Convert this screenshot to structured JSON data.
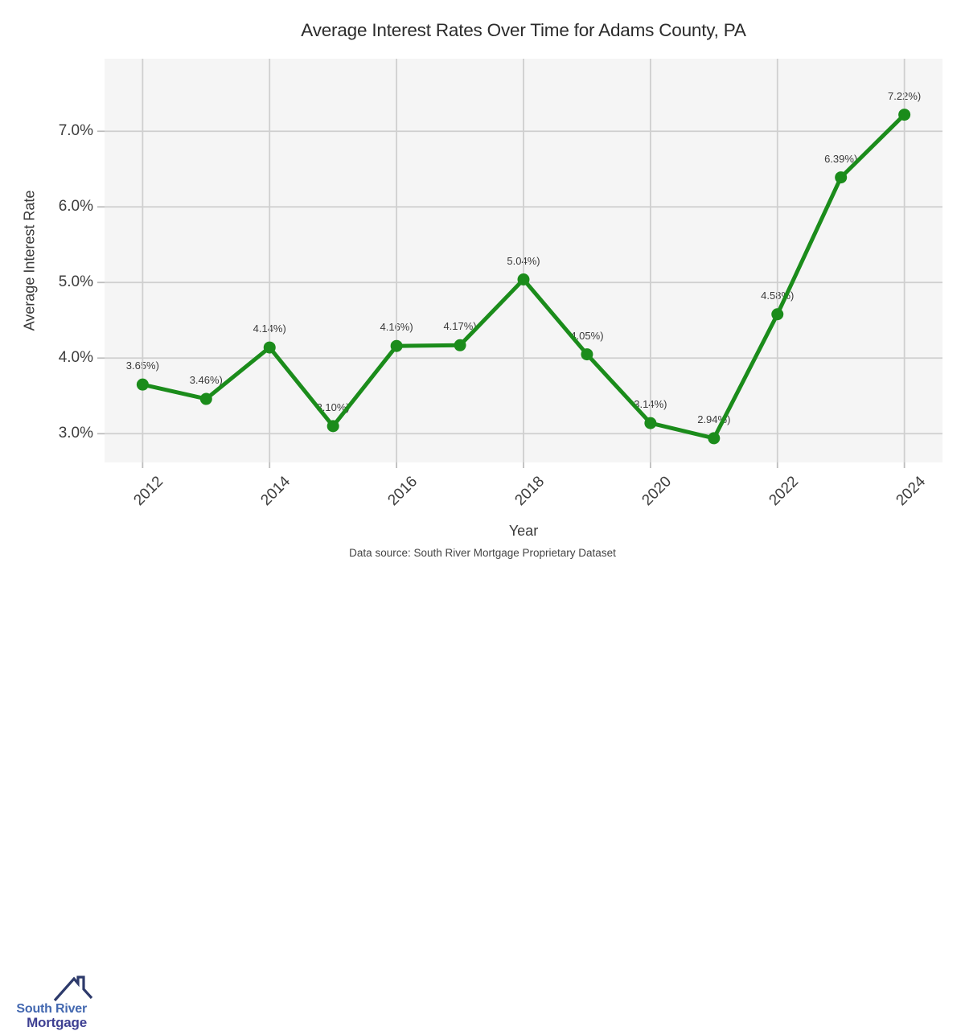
{
  "title": "Average Interest Rates Over Time for Adams County, PA",
  "footer": {
    "source": "Data source: South River Mortgage Proprietary Dataset"
  },
  "logo": {
    "line1": "South River",
    "line2": "Mortgage",
    "line1_color": "#4368b0",
    "line2_color": "#3d3f92",
    "roof_color": "#2d3a6b"
  },
  "chart_data": {
    "type": "line",
    "title": "Average Interest Rates Over Time for Adams County, PA",
    "xlabel": "Year",
    "ylabel": "Average Interest Rate",
    "x": [
      2012,
      2013,
      2014,
      2015,
      2016,
      2017,
      2018,
      2019,
      2020,
      2021,
      2022,
      2023,
      2024
    ],
    "values": [
      3.65,
      3.46,
      4.14,
      3.1,
      4.16,
      4.17,
      5.04,
      4.05,
      3.14,
      2.94,
      4.58,
      6.39,
      7.22
    ],
    "point_labels": [
      "3.65%)",
      "3.46%)",
      "4.14%)",
      "3.10%)",
      "4.16%)",
      "4.17%)",
      "5.04%)",
      "4.05%)",
      "3.14%)",
      "2.94%)",
      "4.58%)",
      "6.39%)",
      "7.22%)"
    ],
    "x_ticks": [
      2012,
      2014,
      2016,
      2018,
      2020,
      2022,
      2024
    ],
    "y_ticks": [
      {
        "value": 3.0,
        "label": "3.0%"
      },
      {
        "value": 4.0,
        "label": "4.0%"
      },
      {
        "value": 5.0,
        "label": "5.0%"
      },
      {
        "value": 6.0,
        "label": "6.0%"
      },
      {
        "value": 7.0,
        "label": "7.0%"
      }
    ],
    "xlim": [
      2011.4,
      2024.6
    ],
    "ylim": [
      2.62,
      7.96
    ],
    "grid": true,
    "legend": "none",
    "line_color": "#1b8c1b",
    "marker_color": "#1b8c1b",
    "plot_bg": "#f5f5f5",
    "grid_color": "#cfcfcf",
    "tick_color": "#bdbdbd"
  }
}
